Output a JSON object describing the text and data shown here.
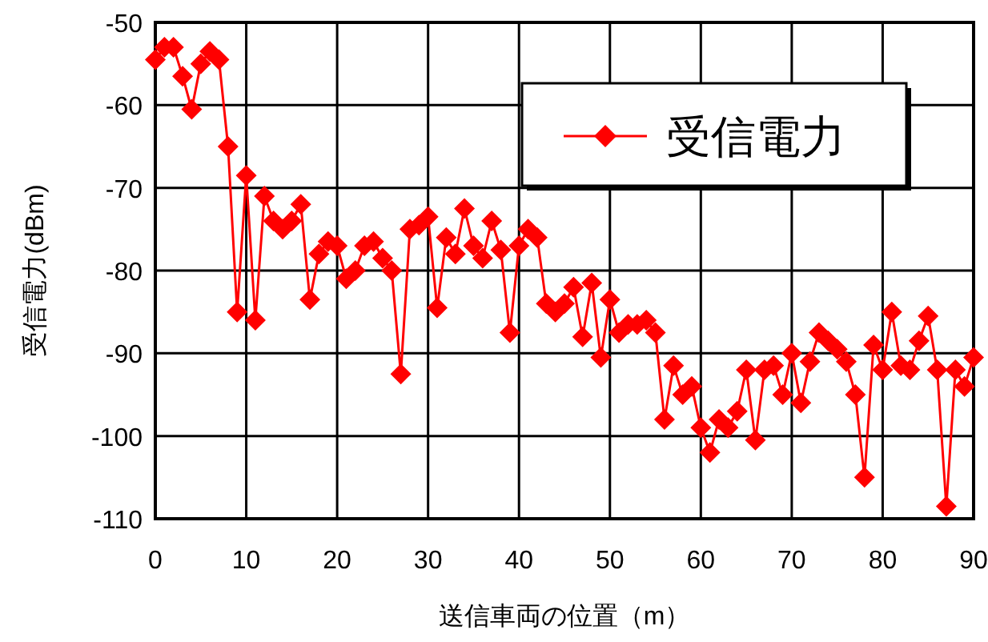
{
  "chart_data": {
    "type": "line",
    "xlabel": "送信車両の位置（m）",
    "ylabel": "受信電力(dBm)",
    "legend": "top right",
    "grid": true,
    "marker": "diamond",
    "line_style": "solid",
    "xlim": [
      0,
      90
    ],
    "xticks": [
      0,
      10,
      20,
      30,
      40,
      50,
      60,
      70,
      80,
      90
    ],
    "ylim": [
      -110,
      -50
    ],
    "yticks": [
      -110,
      -100,
      -90,
      -80,
      -70,
      -60,
      -50
    ],
    "x": [
      0,
      1,
      2,
      3,
      4,
      5,
      6,
      7,
      8,
      9,
      10,
      11,
      12,
      13,
      14,
      15,
      16,
      17,
      18,
      19,
      20,
      21,
      22,
      23,
      24,
      25,
      26,
      27,
      28,
      29,
      30,
      31,
      32,
      33,
      34,
      35,
      36,
      37,
      38,
      39,
      40,
      41,
      42,
      43,
      44,
      45,
      46,
      47,
      48,
      49,
      50,
      51,
      52,
      53,
      54,
      55,
      56,
      57,
      58,
      59,
      60,
      61,
      62,
      63,
      64,
      65,
      66,
      67,
      68,
      69,
      70,
      71,
      72,
      73,
      74,
      75,
      76,
      77,
      78,
      79,
      80,
      81,
      82,
      83,
      84,
      85,
      86,
      87,
      88,
      89,
      90
    ],
    "series": [
      {
        "name": "受信電力",
        "color": "#ff0000",
        "values": [
          -54.5,
          -53,
          -53,
          -56.5,
          -60.5,
          -55,
          -53.5,
          -54.5,
          -65,
          -85,
          -68.5,
          -86,
          -71,
          -74,
          -75,
          -74,
          -72,
          -83.5,
          -78,
          -76.5,
          -77,
          -81,
          -80,
          -77,
          -76.5,
          -78.5,
          -80,
          -92.5,
          -75,
          -74.5,
          -73.5,
          -84.5,
          -76,
          -78,
          -72.5,
          -77,
          -78.5,
          -74,
          -77.5,
          -87.5,
          -77,
          -75,
          -76,
          -84,
          -85,
          -84,
          -82,
          -88,
          -81.5,
          -90.5,
          -83.5,
          -87.5,
          -86.5,
          -86.5,
          -86,
          -87.5,
          -98,
          -91.5,
          -95,
          -94,
          -99,
          -102,
          -98,
          -99,
          -97,
          -92,
          -100.5,
          -92,
          -91.5,
          -95,
          -90,
          -96,
          -91,
          -87.5,
          -88.5,
          -89.5,
          -91,
          -95,
          -105,
          -89,
          -92,
          -85,
          -91.5,
          -92,
          -88.5,
          -85.5,
          -92,
          -108.5,
          -92,
          -94,
          -90.5
        ]
      }
    ]
  }
}
